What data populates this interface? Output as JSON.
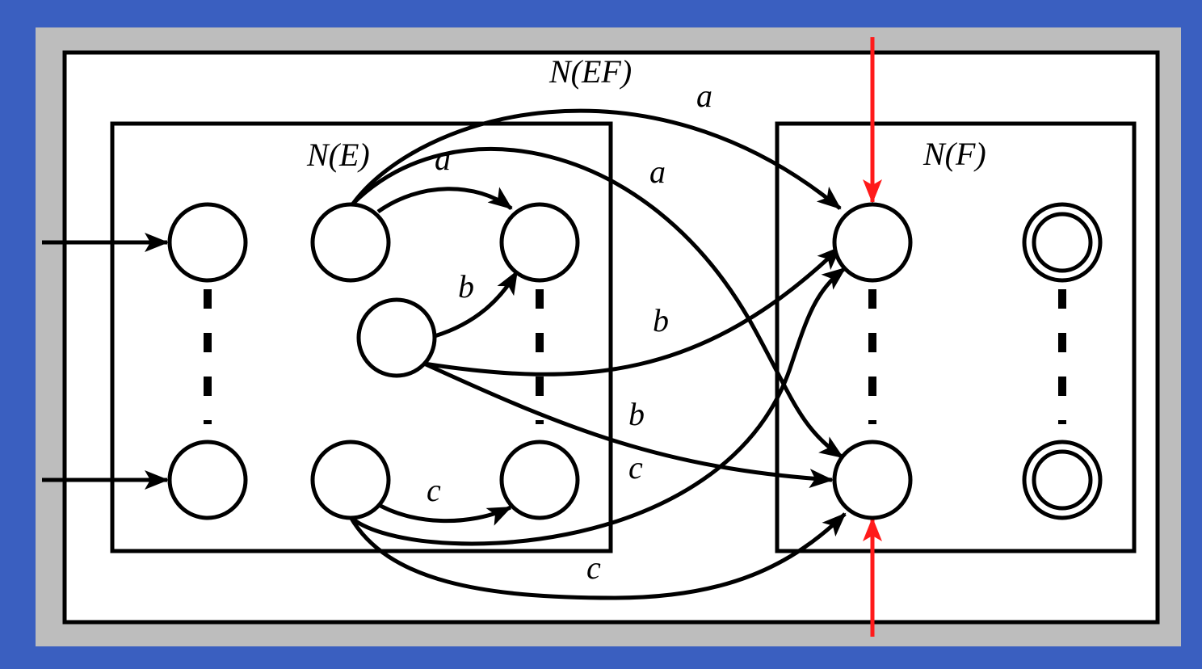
{
  "title_outer": "N(EF)",
  "title_left": "N(E)",
  "title_right": "N(F)",
  "edges": {
    "a1": "a",
    "a2": "a",
    "a3": "a",
    "b1": "b",
    "b2": "b",
    "b3": "b",
    "c1": "c",
    "c2": "c",
    "c3": "c"
  },
  "colors": {
    "background": "#3a5fc0",
    "frame": "#bdbdbd",
    "highlight": "#ff1a1a"
  }
}
